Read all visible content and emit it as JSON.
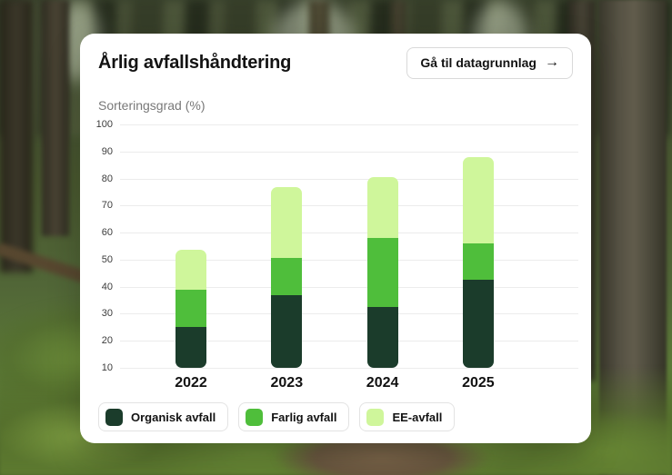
{
  "card": {
    "title": "Årlig avfallshåndtering",
    "button_label": "Gå til datagrunnlag",
    "button_icon": "→",
    "axis_title": "Sorteringsgrad (%)"
  },
  "chart_data": {
    "type": "bar",
    "variant": "stacked",
    "title": "Årlig avfallshåndtering",
    "ylabel": "Sorteringsgrad (%)",
    "categories": [
      "2022",
      "2023",
      "2024",
      "2025"
    ],
    "ylim": [
      10,
      100
    ],
    "yticks": [
      10,
      20,
      30,
      40,
      50,
      60,
      70,
      80,
      90,
      100
    ],
    "baseline": 10,
    "grid": true,
    "legend_position": "bottom-left",
    "series": [
      {
        "name": "Organisk avfall",
        "color": "#1b3c2b",
        "cumulative_tops": [
          25,
          37,
          32.5,
          42.5
        ]
      },
      {
        "name": "Farlig avfall",
        "color": "#4fbe3b",
        "cumulative_tops": [
          39,
          50.5,
          58,
          56
        ]
      },
      {
        "name": "EE-avfall",
        "color": "#cff69b",
        "cumulative_tops": [
          53.5,
          77,
          80.5,
          88
        ]
      }
    ]
  },
  "colors": {
    "card_bg": "#ffffff",
    "title_text": "#131313",
    "axis_title_text": "#787878",
    "tick_text": "#3c3c3c",
    "gridline": "#ececec",
    "button_border": "#d9d9d9",
    "legend_border": "#e3e3e3"
  }
}
